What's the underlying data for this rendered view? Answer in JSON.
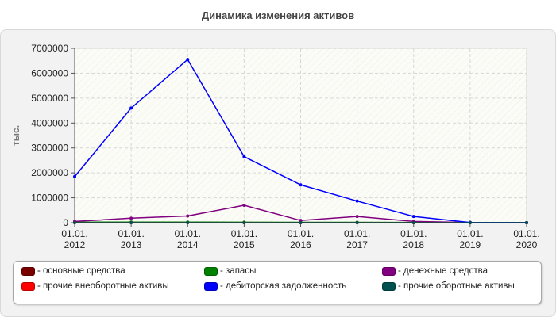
{
  "chart_data": {
    "type": "line",
    "title": "Динамика изменения активов",
    "ylabel": "тыс.",
    "xlabel": "",
    "x": [
      "01.01.\n2012",
      "01.01.\n2013",
      "01.01.\n2014",
      "01.01.\n2015",
      "01.01.\n2016",
      "01.01.\n2017",
      "01.01.\n2018",
      "01.01.\n2019",
      "01.01.\n2020"
    ],
    "ylim": [
      0,
      7000000
    ],
    "yticks": [
      "7000000",
      "6000000",
      "5000000",
      "4000000",
      "3000000",
      "2000000",
      "1000000",
      "0"
    ],
    "grid": true,
    "legend_position": "bottom",
    "series": [
      {
        "name": "- основные средства",
        "color": "#7a0000",
        "values": [
          5000,
          6000,
          6000,
          5000,
          4000,
          3000,
          2000,
          0,
          0
        ]
      },
      {
        "name": "- запасы",
        "color": "#008000",
        "values": [
          20000,
          25000,
          25000,
          20000,
          15000,
          15000,
          10000,
          0,
          0
        ]
      },
      {
        "name": "- денежные средства",
        "color": "#800080",
        "values": [
          50000,
          180000,
          270000,
          700000,
          90000,
          250000,
          50000,
          10000,
          0
        ]
      },
      {
        "name": "- прочие внеоборотные активы",
        "color": "#ff0000",
        "values": [
          0,
          0,
          0,
          0,
          0,
          0,
          0,
          0,
          0
        ]
      },
      {
        "name": "- дебиторская задолженность",
        "color": "#0000ff",
        "values": [
          1850000,
          4600000,
          6550000,
          2650000,
          1520000,
          870000,
          250000,
          10000,
          0
        ]
      },
      {
        "name": "- прочие оборотные активы",
        "color": "#005050",
        "values": [
          0,
          0,
          0,
          0,
          0,
          0,
          0,
          0,
          0
        ]
      }
    ]
  }
}
